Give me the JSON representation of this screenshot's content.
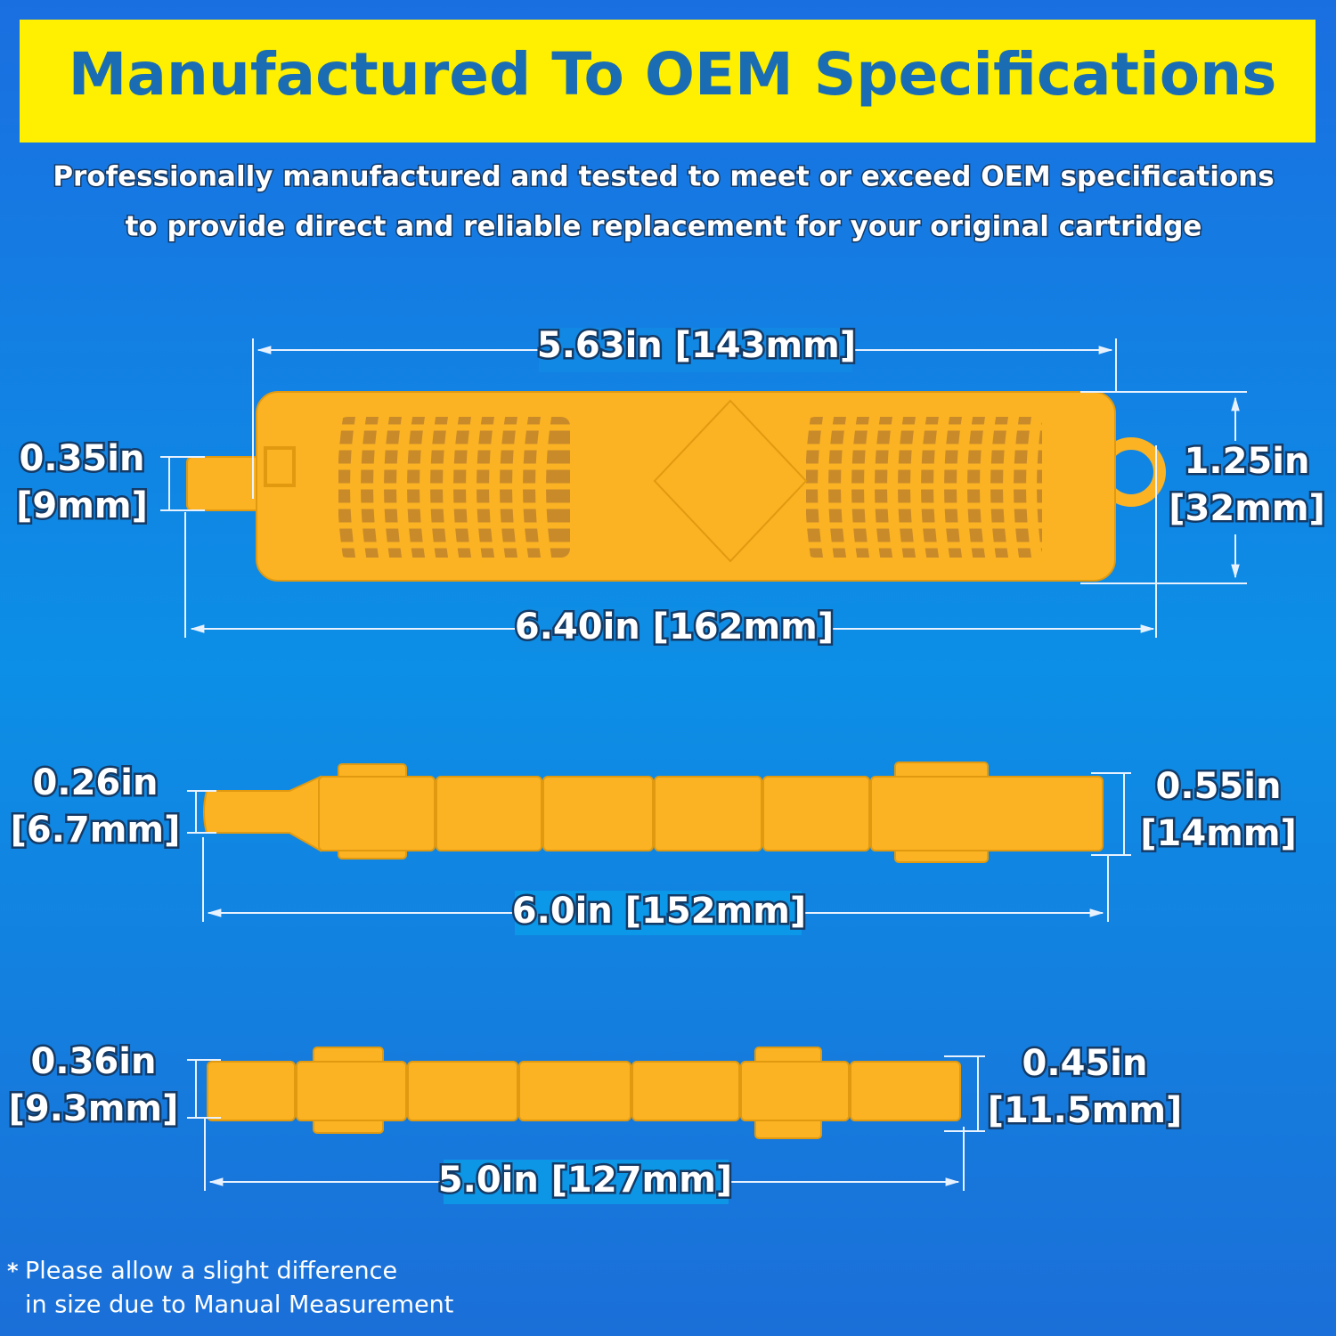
{
  "header": {
    "title": "Manufactured To OEM Specifications",
    "subtitle_lines": [
      "Professionally manufactured and tested to meet or exceed OEM specifications",
      "to provide direct and reliable replacement for your original cartridge"
    ]
  },
  "products": [
    {
      "length": "5.63in [143mm]",
      "total_length": "6.40in [162mm]",
      "left_dim": [
        "0.35in",
        "[9mm]"
      ],
      "right_dim": [
        "1.25in",
        "[32mm]"
      ]
    },
    {
      "length": "6.0in [152mm]",
      "left_dim": [
        "0.26in",
        "[6.7mm]"
      ],
      "right_dim": [
        "0.55in",
        "[14mm]"
      ]
    },
    {
      "length": "5.0in [127mm]",
      "left_dim": [
        "0.36in",
        "[9.3mm]"
      ],
      "right_dim": [
        "0.45in",
        "[11.5mm]"
      ]
    }
  ],
  "footnote": {
    "mark": "*",
    "lines": [
      "Please allow a slight difference",
      "in size due to Manual Measurement"
    ]
  }
}
